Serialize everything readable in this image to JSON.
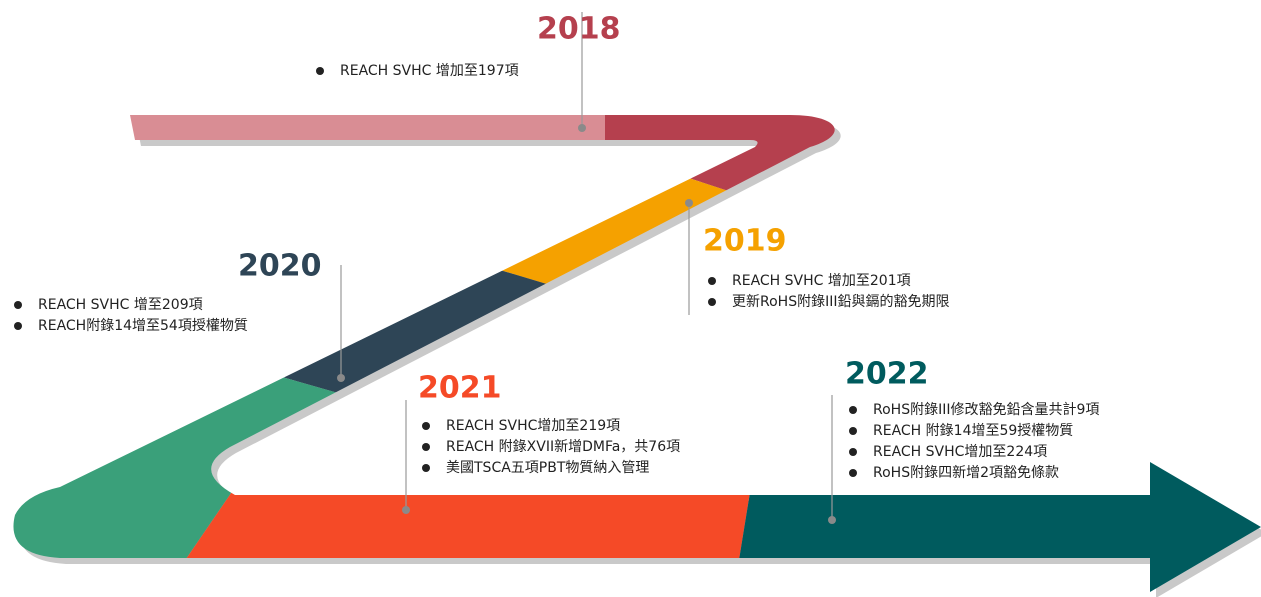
{
  "milestones": [
    {
      "year": "2018",
      "items": [
        "REACH SVHC 增加至197項"
      ]
    },
    {
      "year": "2019",
      "items": [
        "REACH SVHC 增加至201項",
        "更新RoHS附錄III鉛與鎘的豁免期限"
      ]
    },
    {
      "year": "2020",
      "items": [
        "REACH SVHC 增至209項",
        "REACH附錄14增至54項授權物質"
      ]
    },
    {
      "year": "2021",
      "items": [
        "REACH SVHC增加至219項",
        "REACH 附錄XVII新增DMFa，共76項",
        "美國TSCA五項PBT物質納入管理"
      ]
    },
    {
      "year": "2022",
      "items": [
        "RoHS附錄III修改豁免鉛含量共計9項",
        "REACH 附錄14增至59授權物質",
        "REACH SVHC增加至224項",
        "RoHS附錄四新增2項豁免條款"
      ]
    }
  ]
}
